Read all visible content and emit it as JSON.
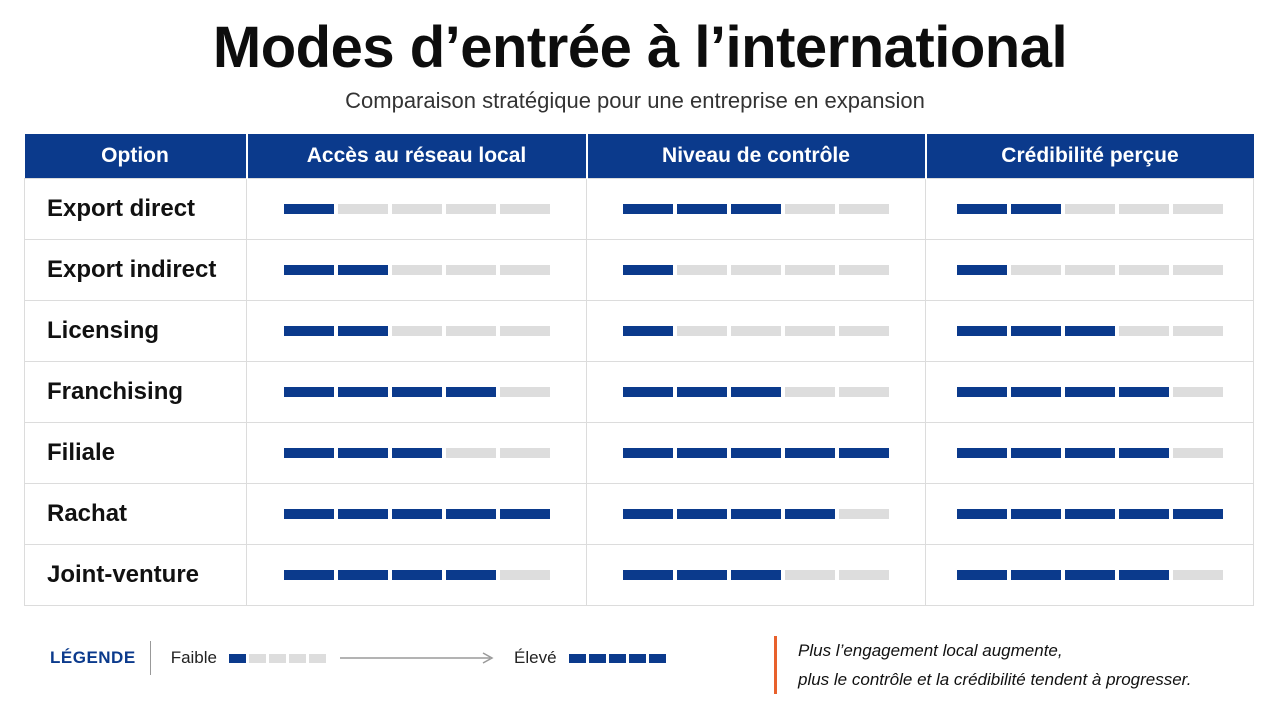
{
  "header": {
    "title": "Modes d’entrée à l’international",
    "subtitle": "Comparaison stratégique pour une entreprise en expansion"
  },
  "table": {
    "columns": [
      "Option",
      "Accès au réseau local",
      "Niveau de contrôle",
      "Crédibilité perçue"
    ],
    "scale_max": 5,
    "rows": [
      {
        "option": "Export direct",
        "ratings": [
          1,
          3,
          2
        ]
      },
      {
        "option": "Export indirect",
        "ratings": [
          2,
          1,
          1
        ]
      },
      {
        "option": "Licensing",
        "ratings": [
          2,
          1,
          3
        ]
      },
      {
        "option": "Franchising",
        "ratings": [
          4,
          3,
          4
        ]
      },
      {
        "option": "Filiale",
        "ratings": [
          3,
          5,
          4
        ]
      },
      {
        "option": "Rachat",
        "ratings": [
          5,
          4,
          5
        ]
      },
      {
        "option": "Joint-venture",
        "ratings": [
          4,
          3,
          4
        ]
      }
    ]
  },
  "legend": {
    "title": "LÉGENDE",
    "low_label": "Faible",
    "high_label": "Élevé",
    "low_level": 1,
    "high_level": 5
  },
  "note": {
    "line1": "Plus l’engagement local augmente,",
    "line2": "plus le contrôle et la crédibilité tendent à progresser."
  },
  "colors": {
    "accent": "#0b3a8c",
    "empty": "#dddddd",
    "note_rule": "#e8612c"
  }
}
